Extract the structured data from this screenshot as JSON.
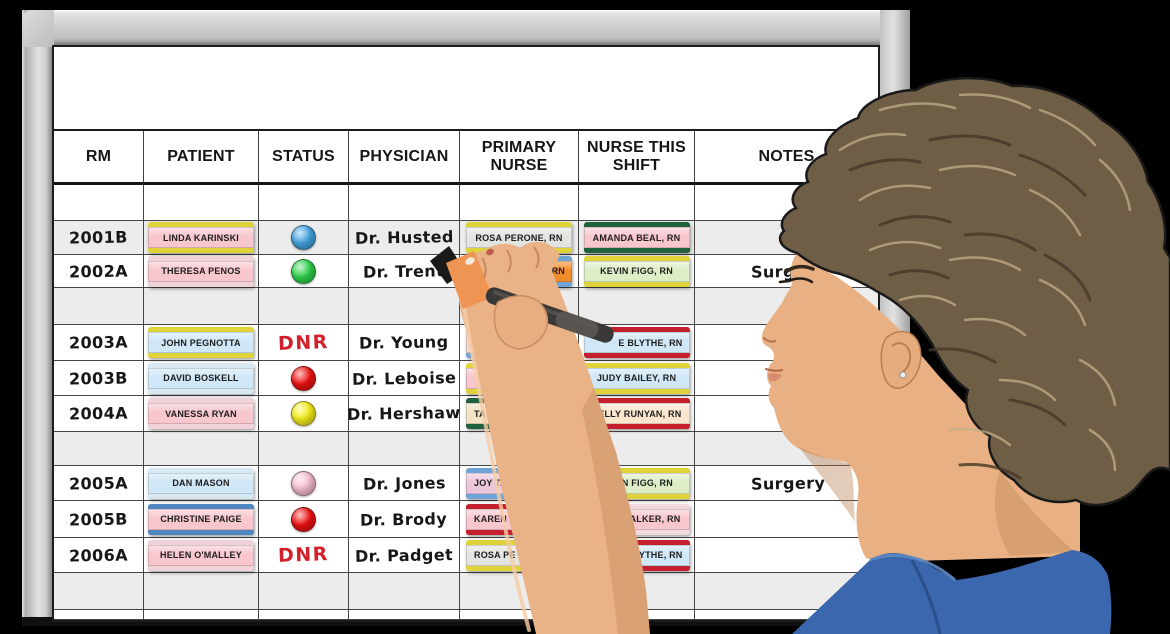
{
  "board": {
    "title": "",
    "description": "hospital patient status dry-erase magnetic whiteboard",
    "accent_colors": {
      "dnr_red": "#d3202a",
      "frame_silver": "#c9c9c9",
      "shaded_row": "#ececec"
    }
  },
  "table": {
    "columns": [
      "RM",
      "PATIENT",
      "STATUS",
      "PHYSICIAN",
      "PRIMARY NURSE",
      "NURSE THIS SHIFT",
      "NOTES"
    ],
    "rows": [
      {
        "kind": "spacer",
        "shaded": false
      },
      {
        "kind": "data",
        "shaded": true,
        "room": "2001B",
        "patient": {
          "text": "LINDA KARINSKI",
          "body": "#f7c6ce",
          "stripe": "#e0d33a"
        },
        "status": {
          "dot": "#42a4e0",
          "label": "blue-dot"
        },
        "physician": "Dr. Husted",
        "primary": {
          "text": "ROSA PERONE, RN",
          "body": "#e3e3df",
          "stripe": "#e0d33a"
        },
        "shift": {
          "text": "AMANDA BEAL, RN",
          "body": "#f7c6ce",
          "stripe": "#20603a"
        },
        "notes": ""
      },
      {
        "kind": "data",
        "shaded": false,
        "room": "2002A",
        "patient": {
          "text": "THERESA PENOS",
          "body": "#f7c6ce",
          "stripe": "#f0d3d8"
        },
        "status": {
          "dot": "#2fd14b",
          "label": "green-dot"
        },
        "physician": "Dr. Trent",
        "primary": {
          "text": "RN",
          "align": "right",
          "body": "#f18c2b",
          "stripe": "#6ea3d8"
        },
        "shift": {
          "text": "KEVIN FIGG, RN",
          "body": "#ddedc6",
          "stripe": "#e0d33a"
        },
        "notes": "Surgery"
      },
      {
        "kind": "spacer",
        "shaded": true
      },
      {
        "kind": "data",
        "shaded": false,
        "room": "2003A",
        "patient": {
          "text": "JOHN PEGNOTTA",
          "body": "#cfe7f7",
          "stripe": "#e0d33a"
        },
        "status": {
          "text": "DNR"
        },
        "physician": "Dr. Young",
        "primary": {
          "text": "",
          "body": "#f6d8d2",
          "stripe": "#6ea3d8"
        },
        "shift": {
          "text": "E BLYTHE, RN",
          "align": "right",
          "body": "#cfe7f7",
          "stripe": "#c41f2c"
        },
        "notes": ""
      },
      {
        "kind": "data",
        "shaded": false,
        "room": "2003B",
        "patient": {
          "text": "DAVID BOSKELL",
          "body": "#cfe7f7",
          "stripe": "#d8e8f2"
        },
        "status": {
          "dot": "#ee1111",
          "label": "red-dot"
        },
        "physician": "Dr. Leboise",
        "primary": {
          "text": "",
          "body": "#f7c6ce",
          "stripe": "#e0d33a"
        },
        "shift": {
          "text": "JUDY BAILEY, RN",
          "body": "#cfe7f7",
          "stripe": "#e0d33a"
        },
        "notes": ""
      },
      {
        "kind": "data",
        "shaded": false,
        "room": "2004A",
        "patient": {
          "text": "VANESSA RYAN",
          "body": "#f7c6ce",
          "stripe": "#f0d3d8"
        },
        "status": {
          "dot": "#f4ee1b",
          "label": "yellow-dot"
        },
        "physician": "Dr. Hershaw",
        "primary": {
          "text_left": "TA",
          "text_right": "N",
          "body": "#f3e2c4",
          "stripe": "#20603a"
        },
        "shift": {
          "text": "KELLY RUNYAN, RN",
          "body": "#f9e6cd",
          "stripe": "#c41f2c"
        },
        "notes": ""
      },
      {
        "kind": "spacer",
        "shaded": true
      },
      {
        "kind": "data",
        "shaded": false,
        "room": "2005A",
        "patient": {
          "text": "DAN MASON",
          "body": "#cfe7f7",
          "stripe": "#d8e8f2"
        },
        "status": {
          "dot": "#f7bed3",
          "label": "pink-dot"
        },
        "physician": "Dr. Jones",
        "primary": {
          "text": "JOY TA",
          "align": "left",
          "body": "#ecc6d8",
          "stripe": "#6ea3d8"
        },
        "shift": {
          "text": "KEVIN FIGG, RN",
          "body": "#ddedc6",
          "stripe": "#e0d33a"
        },
        "notes": "Surgery"
      },
      {
        "kind": "data",
        "shaded": false,
        "room": "2005B",
        "patient": {
          "text": "CHRISTINE PAIGE",
          "body": "#f7c6ce",
          "stripe": "#4f86c0"
        },
        "status": {
          "dot": "#ee1111",
          "label": "red-dot"
        },
        "physician": "Dr. Brody",
        "primary": {
          "text": "KAREN",
          "align": "left",
          "body": "#f7c6ce",
          "stripe": "#c41f2c"
        },
        "shift": {
          "text": "TODD WALKER, RN",
          "body": "#f7c6ce",
          "stripe": "#f2d9de"
        },
        "notes": ""
      },
      {
        "kind": "data",
        "shaded": false,
        "room": "2006A",
        "patient": {
          "text": "HELEN O'MALLEY",
          "body": "#f7c6ce",
          "stripe": "#f0d3d8"
        },
        "status": {
          "text": "DNR"
        },
        "physician": "Dr. Padget",
        "primary": {
          "text": "ROSA PE",
          "align": "left",
          "body": "#e3e3df",
          "stripe": "#e0d33a"
        },
        "shift": {
          "text": "ANE BLYTHE, RN",
          "align": "right",
          "body": "#cfe7f7",
          "stripe": "#c41f2c"
        },
        "notes": ""
      },
      {
        "kind": "spacer",
        "shaded": true
      },
      {
        "kind": "spacer",
        "shaded": false
      }
    ]
  }
}
